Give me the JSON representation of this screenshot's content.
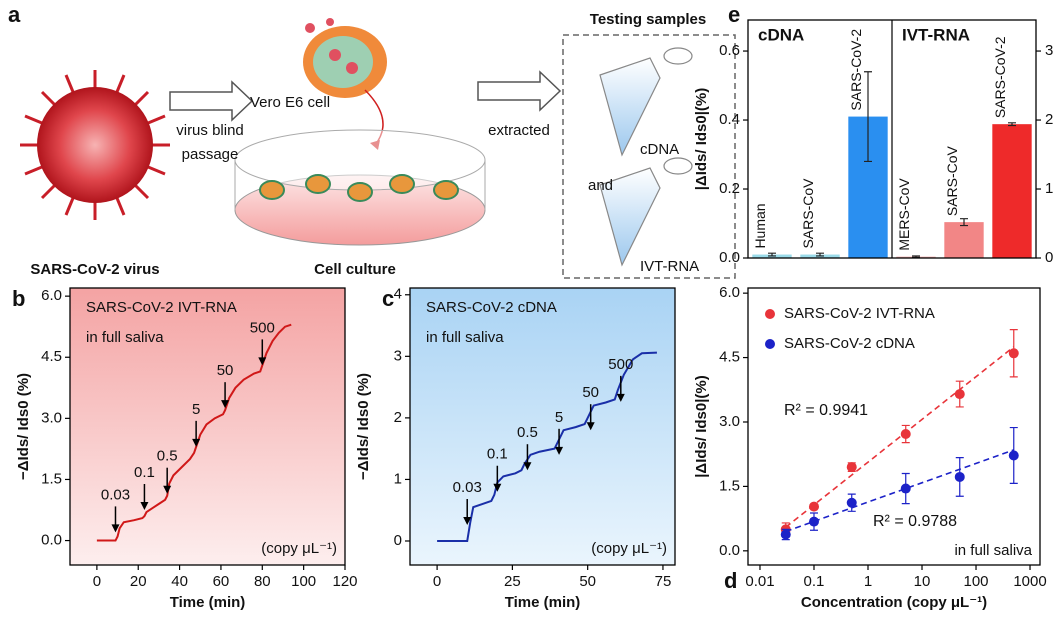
{
  "panel_a": {
    "label": "a",
    "virus": "SARS-CoV-2 virus",
    "step1_line1": "virus blind",
    "step1_line2": "passage",
    "cell": "Vero E6 cell",
    "culture": "Cell culture",
    "step2": "extracted",
    "samples_title": "Testing samples",
    "sample1": "cDNA",
    "and": "and",
    "sample2": "IVT-RNA"
  },
  "chart_data": [
    {
      "type": "bar",
      "panel_label": "e",
      "ylabel": "|ΔIds/ Ids0|(%)",
      "ylim": [
        0,
        0.69
      ],
      "yticks": [
        {
          "value": 0,
          "label": "0.0"
        },
        0.2,
        0.4,
        0.6
      ],
      "y2lim": [
        0,
        3.45
      ],
      "y2ticks": [
        0,
        1,
        2,
        3
      ],
      "groups": [
        {
          "name": "cDNA",
          "axis": "y",
          "categories": [
            "Human",
            "SARS-CoV",
            "SARS-CoV-2"
          ],
          "values": [
            0.01,
            0.01,
            0.41
          ],
          "errors": [
            0.004,
            0.004,
            0.13
          ],
          "colors": [
            "#9adbe9",
            "#9adbe9",
            "#2a8ff0"
          ]
        },
        {
          "name": "IVT-RNA",
          "axis": "y2",
          "categories": [
            "MERS-CoV",
            "SARS-CoV",
            "SARS-CoV-2"
          ],
          "values": [
            0.02,
            0.52,
            1.94
          ],
          "errors": [
            0.01,
            0.05,
            0.02
          ],
          "colors": [
            "#f6b0b0",
            "#f28686",
            "#ee2a2a"
          ]
        }
      ]
    },
    {
      "type": "line",
      "panel_label": "b",
      "color": "#d01818",
      "xlabel": "Time (min)",
      "ylabel": "−ΔIds/ Ids0 (%)",
      "xlim": [
        -13,
        120
      ],
      "xticks": [
        0,
        20,
        40,
        60,
        80,
        100,
        120
      ],
      "ylim": [
        -0.6,
        6.2
      ],
      "yticks": [
        {
          "value": 0,
          "label": "0.0"
        },
        1.5,
        {
          "value": 3,
          "label": "3.0"
        },
        4.5,
        {
          "value": 6,
          "label": "6.0"
        }
      ],
      "x": [
        0,
        9,
        10,
        11,
        13,
        18,
        22,
        23,
        24,
        27,
        30,
        33,
        34,
        35,
        37,
        41,
        45,
        47,
        48,
        50,
        53,
        57,
        61,
        62,
        64,
        67,
        71,
        76,
        79,
        80,
        82,
        85,
        88,
        91,
        94
      ],
      "values": [
        0,
        0,
        0.1,
        0.3,
        0.45,
        0.5,
        0.55,
        0.6,
        0.7,
        0.8,
        0.9,
        1.0,
        1.1,
        1.4,
        1.6,
        1.8,
        2.0,
        2.15,
        2.3,
        2.6,
        2.85,
        3.0,
        3.1,
        3.2,
        3.5,
        3.75,
        3.95,
        4.1,
        4.15,
        4.3,
        4.6,
        4.9,
        5.1,
        5.25,
        5.3
      ],
      "arrows": [
        {
          "text": "0.03",
          "x": 9,
          "y": 0.2
        },
        {
          "text": "0.1",
          "x": 23,
          "y": 0.75
        },
        {
          "text": "0.5",
          "x": 34,
          "y": 1.15
        },
        {
          "text": "5",
          "x": 48,
          "y": 2.3
        },
        {
          "text": "50",
          "x": 62,
          "y": 3.25
        },
        {
          "text": "500",
          "x": 80,
          "y": 4.3
        }
      ],
      "notes": [
        "SARS-CoV-2 IVT-RNA",
        "in full saliva",
        "(copy μL⁻¹)"
      ]
    },
    {
      "type": "line",
      "panel_label": "c",
      "color": "#1a2fa8",
      "xlabel": "Time (min)",
      "ylabel": "−ΔIds/ Ids0 (%)",
      "xlim": [
        -9,
        79
      ],
      "xticks": [
        0,
        25,
        50,
        75
      ],
      "ylim": [
        -0.39,
        4.11
      ],
      "yticks": [
        0,
        1,
        2,
        3,
        4
      ],
      "x": [
        0,
        10,
        11,
        12,
        15,
        18,
        19,
        20,
        22,
        26,
        28,
        29,
        31,
        34,
        39,
        40,
        42,
        46,
        49,
        50,
        52,
        56,
        59,
        60,
        62,
        65,
        68,
        73
      ],
      "values": [
        0,
        0,
        0.3,
        0.55,
        0.6,
        0.65,
        0.75,
        0.95,
        1.05,
        1.1,
        1.15,
        1.25,
        1.4,
        1.45,
        1.5,
        1.6,
        1.8,
        1.85,
        1.9,
        2.0,
        2.2,
        2.25,
        2.3,
        2.45,
        2.7,
        2.95,
        3.05,
        3.06
      ],
      "arrows": [
        {
          "text": "0.03",
          "x": 10,
          "y": 0.26
        },
        {
          "text": "0.1",
          "x": 20,
          "y": 0.8
        },
        {
          "text": "0.5",
          "x": 30,
          "y": 1.15
        },
        {
          "text": "5",
          "x": 40.5,
          "y": 1.4
        },
        {
          "text": "50",
          "x": 51,
          "y": 1.8
        },
        {
          "text": "500",
          "x": 61,
          "y": 2.26
        }
      ],
      "notes": [
        "SARS-CoV-2 cDNA",
        "in full saliva",
        "(copy μL⁻¹)"
      ]
    },
    {
      "type": "scatter",
      "panel_label": "d",
      "xlabel": "Concentration (copy μL⁻¹)",
      "ylabel": "|ΔIds/ Ids0|(%)",
      "xscale": "log",
      "xlim": [
        0.006,
        1530
      ],
      "xticks": [
        0.01,
        0.1,
        1,
        10,
        100,
        1000
      ],
      "ylim": [
        -0.33,
        6.12
      ],
      "yticks": [
        {
          "value": 0,
          "label": "0.0"
        },
        1.5,
        {
          "value": 3,
          "label": "3.0"
        },
        4.5,
        {
          "value": 6,
          "label": "6.0"
        }
      ],
      "legend": "upper left",
      "series": [
        {
          "name": "SARS-CoV-2 IVT-RNA",
          "color": "#e8343a",
          "x": [
            0.03,
            0.1,
            0.5,
            5,
            50,
            500
          ],
          "values": [
            0.5,
            1.03,
            1.95,
            2.72,
            3.65,
            4.6
          ],
          "errors": [
            0.15,
            0.05,
            0.1,
            0.2,
            0.3,
            0.55
          ],
          "fit": {
            "x": [
              0.03,
              500
            ],
            "values": [
              0.55,
              4.75
            ]
          },
          "fit_label": "R² = 0.9941"
        },
        {
          "name": "SARS-CoV-2 cDNA",
          "color": "#1c22c8",
          "x": [
            0.03,
            0.1,
            0.5,
            5,
            50,
            500
          ],
          "values": [
            0.38,
            0.68,
            1.12,
            1.45,
            1.72,
            2.22
          ],
          "errors": [
            0.12,
            0.2,
            0.2,
            0.35,
            0.45,
            0.65
          ],
          "fit": {
            "x": [
              0.03,
              500
            ],
            "values": [
              0.45,
              2.35
            ]
          },
          "fit_label": "R² = 0.9788"
        }
      ],
      "notes": [
        "in full saliva"
      ]
    }
  ]
}
